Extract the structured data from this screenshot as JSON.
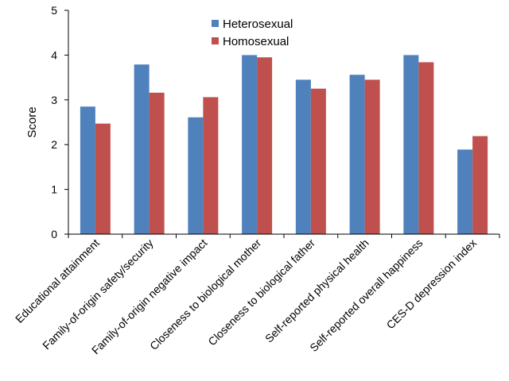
{
  "chart_data": {
    "type": "bar",
    "title": "",
    "xlabel": "",
    "ylabel": "Score",
    "ylim": [
      0,
      5
    ],
    "yticks": [
      0,
      1,
      2,
      3,
      4,
      5
    ],
    "grid": false,
    "legend_position": "top-center",
    "categories": [
      "Educational attainment",
      "Family-of-origin safety/security",
      "Family-of-origin negative impact",
      "Closeness to biological mother",
      "Closeness to biological father",
      "Self-reported physical health",
      "Self-reported overall happiness",
      "CES-D depression index"
    ],
    "series": [
      {
        "name": "Heterosexual",
        "color": "#4f81bd",
        "values": [
          2.85,
          3.79,
          2.61,
          4.0,
          3.45,
          3.56,
          4.0,
          1.89
        ]
      },
      {
        "name": "Homosexual",
        "color": "#c0504d",
        "values": [
          2.47,
          3.16,
          3.06,
          3.95,
          3.25,
          3.45,
          3.84,
          2.19
        ]
      }
    ]
  }
}
